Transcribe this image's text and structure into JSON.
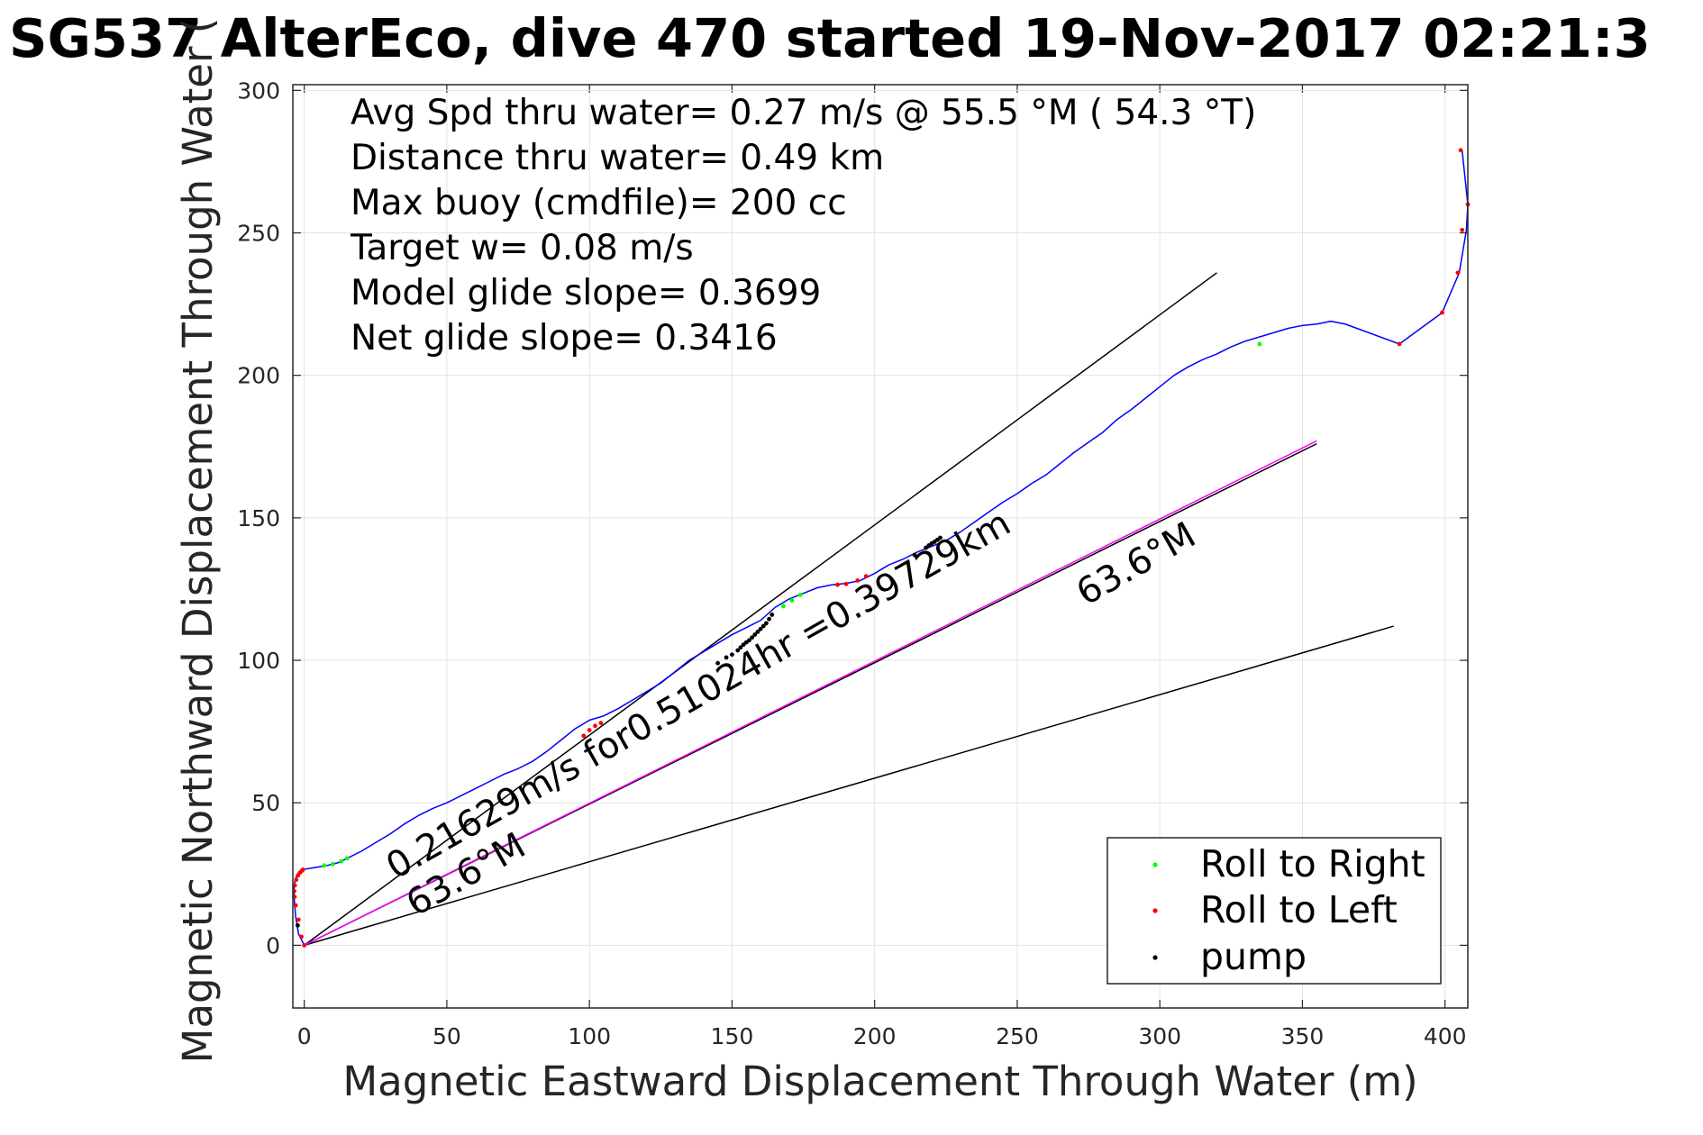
{
  "chart_data": {
    "type": "line",
    "title": "SG537 AlterEco, dive 470 started 19-Nov-2017 02:21:3",
    "xlabel": "Magnetic Eastward Displacement Through Water (m)",
    "ylabel": "Magnetic Northward Displacement Through Water (",
    "xlim": [
      -4,
      408
    ],
    "ylim": [
      -22,
      302
    ],
    "xticks": [
      0,
      50,
      100,
      150,
      200,
      250,
      300,
      350,
      400
    ],
    "yticks": [
      0,
      50,
      100,
      150,
      200,
      250,
      300
    ],
    "grid": true,
    "info_lines": [
      "Avg Spd thru water=  0.27 m/s @  55.5 °M ( 54.3 °T)",
      "Distance thru water=  0.49 km",
      "Max buoy (cmdfile)= 200 cc",
      "Target w= 0.08 m/s",
      "Model glide slope= 0.3699",
      "Net glide slope= 0.3416"
    ],
    "rotated_labels": [
      {
        "text": "0.21629m/s for0.51024hr =0.39729km",
        "x": 32,
        "y": 23,
        "angle": 29.5
      },
      {
        "text": "63.6°M",
        "x": 39,
        "y": 10,
        "angle": 29.5
      },
      {
        "text": "63.6°M",
        "x": 274,
        "y": 119,
        "angle": 29.5
      }
    ],
    "track": {
      "color": "#0000ff",
      "x": [
        0,
        -2,
        -3,
        -3.5,
        -3.6,
        -3.2,
        -2.4,
        -1,
        2,
        5,
        8,
        12,
        15,
        20,
        25,
        30,
        35,
        40,
        45,
        50,
        55,
        60,
        65,
        70,
        75,
        80,
        85,
        90,
        95,
        100,
        105,
        110,
        115,
        120,
        125,
        130,
        135,
        140,
        145,
        150,
        155,
        160,
        165,
        170,
        175,
        180,
        185,
        190,
        195,
        200,
        205,
        210,
        215,
        220,
        225,
        230,
        235,
        240,
        245,
        250,
        255,
        260,
        265,
        270,
        275,
        280,
        285,
        290,
        295,
        300,
        305,
        310,
        315,
        320,
        325,
        330,
        335,
        340,
        345,
        350,
        355,
        360,
        365,
        384,
        399,
        405,
        407.5,
        408,
        406
      ],
      "y": [
        0,
        4,
        10,
        16,
        20,
        23,
        25,
        26.5,
        27,
        27.5,
        28,
        29,
        30.5,
        33,
        36,
        39,
        42.5,
        45.5,
        48,
        50,
        52.5,
        55,
        57.5,
        60,
        62,
        64.5,
        68,
        72,
        76,
        79,
        80.5,
        83,
        86,
        89,
        92,
        96,
        100,
        103,
        106,
        109,
        111.5,
        114,
        118.5,
        121.5,
        123.5,
        125.5,
        126.5,
        127,
        128,
        130.5,
        133.5,
        135.5,
        138,
        140,
        142,
        145,
        148.5,
        152,
        155.5,
        158.5,
        162,
        165,
        169,
        173,
        176.5,
        180,
        184.5,
        188,
        192,
        196,
        200,
        203,
        205.5,
        207.5,
        210,
        212,
        213.5,
        215,
        216.5,
        217.5,
        218,
        219,
        218,
        211,
        222,
        236,
        251,
        260,
        279
      ]
    },
    "reference_lines": [
      {
        "color": "#000000",
        "x": [
          0,
          320
        ],
        "y": [
          0,
          236
        ]
      },
      {
        "color": "#000000",
        "x": [
          0,
          382
        ],
        "y": [
          0,
          112
        ]
      },
      {
        "color": "#000000",
        "x": [
          0,
          355
        ],
        "y": [
          0,
          176
        ]
      },
      {
        "color": "#ff00ff",
        "x": [
          0,
          355
        ],
        "y": [
          0,
          177
        ]
      }
    ],
    "series": [
      {
        "name": "Roll to Right",
        "color": "#00ff00",
        "x": [
          7,
          10,
          13,
          15,
          168,
          171,
          174,
          335
        ],
        "y": [
          28,
          28.5,
          29.5,
          30.5,
          119,
          121,
          123,
          211
        ]
      },
      {
        "name": "Roll to Left",
        "color": "#ff0000",
        "x": [
          0,
          -1,
          -2,
          -3,
          -3.4,
          -3.5,
          -3.3,
          -2.8,
          -2.2,
          -1.5,
          -1,
          -0.5,
          98,
          100,
          102,
          104,
          187,
          190,
          194,
          197,
          384,
          399,
          404.5,
          406,
          408,
          405.5
        ],
        "y": [
          0,
          3,
          9,
          14,
          17,
          19,
          21,
          23,
          24.5,
          25.5,
          26,
          26.5,
          73.5,
          75.5,
          77,
          78,
          126.5,
          126.8,
          128,
          129.5,
          211,
          222,
          236,
          251,
          260,
          279
        ]
      },
      {
        "name": "pump",
        "color": "#000000",
        "x": [
          -2.3,
          145,
          148,
          150,
          152,
          153,
          154,
          155,
          156,
          157,
          158,
          159,
          160,
          161,
          162,
          163,
          164,
          214,
          218,
          219,
          220,
          221,
          222,
          223
        ],
        "y": [
          7,
          99,
          101,
          102,
          103.5,
          104.5,
          105.5,
          106.3,
          107,
          108,
          109,
          110,
          111,
          112,
          113,
          114.5,
          116,
          137,
          139.5,
          140.3,
          141,
          141.6,
          142.3,
          143
        ]
      }
    ],
    "legend": {
      "position": "bottom-right",
      "entries": [
        "Roll to Right",
        "Roll to Left",
        "pump"
      ]
    }
  }
}
